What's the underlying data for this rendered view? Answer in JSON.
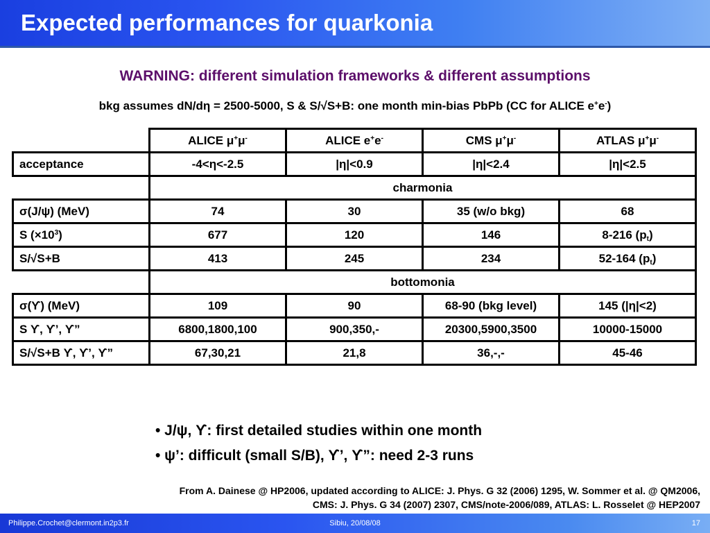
{
  "slide": {
    "title": "Expected performances for quarkonia",
    "warning": "WARNING: different simulation frameworks & different assumptions",
    "bkg_note_parts": [
      "bkg assumes dN/d",
      "η",
      " = 2500-5000, S & S/√S+B: one month min-bias PbPb (CC for ALICE e",
      "+",
      "e",
      "-",
      ")"
    ]
  },
  "table": {
    "columns": [
      {
        "name": "ALICE ",
        "particles": "μ",
        "sup1": "+",
        "p2": "μ",
        "sup2": "-"
      },
      {
        "name": "ALICE e",
        "particles": "",
        "sup1": "+",
        "p2": "e",
        "sup2": "-"
      },
      {
        "name": "CMS ",
        "particles": "μ",
        "sup1": "+",
        "p2": "μ",
        "sup2": "-"
      },
      {
        "name": "ATLAS ",
        "particles": "μ",
        "sup1": "+",
        "p2": "μ",
        "sup2": "-"
      }
    ],
    "acceptance": {
      "label": "acceptance",
      "values": [
        "-4<η<-2.5",
        "|η|<0.9",
        "|η|<2.4",
        "|η|<2.5"
      ]
    },
    "charmonia": {
      "section_label": "charmonia",
      "sigma": {
        "label": "σ(J/ψ) (MeV)",
        "values": [
          "74",
          "30",
          "35 (w/o bkg)",
          "68"
        ]
      },
      "s": {
        "label_pre": "S (×10",
        "label_sup": "3",
        "label_post": ")",
        "values": [
          "677",
          "120",
          "146"
        ],
        "atlas_pre": "8-216 (p",
        "atlas_sub": "t",
        "atlas_post": ")"
      },
      "ssb": {
        "label": "S/√S+B",
        "values": [
          "413",
          "245",
          "234"
        ],
        "atlas_pre": "52-164 (p",
        "atlas_sub": "t",
        "atlas_post": ")"
      }
    },
    "bottomonia": {
      "section_label": "bottomonia",
      "sigma": {
        "label": "σ(ϒ) (MeV)",
        "values": [
          "109",
          "90",
          "68-90 (bkg level)",
          "145 (|η|<2)"
        ]
      },
      "s": {
        "label": "S ϒ, ϒ’, ϒ”",
        "values": [
          "6800,1800,100",
          "900,350,-",
          "20300,5900,3500",
          "10000-15000"
        ]
      },
      "ssb": {
        "label": "S/√S+B ϒ, ϒ’, ϒ”",
        "values": [
          "67,30,21",
          "21,8",
          "36,-,-",
          "45-46"
        ]
      }
    }
  },
  "bullets": [
    "• J/ψ, ϒ: first detailed studies within one month",
    "• ψ’: difficult (small S/B), ϒ’, ϒ”: need 2-3 runs"
  ],
  "source": {
    "line1": "From A. Dainese @ HP2006, updated according to ALICE: J. Phys. G 32 (2006) 1295, W. Sommer et al.  @ QM2006,",
    "line2": "CMS: J. Phys. G 34 (2007) 2307, CMS/note-2006/089, ATLAS: L. Rosselet @ HEP2007"
  },
  "footer": {
    "email": "Philippe.Crochet@clermont.in2p3.fr",
    "event": "Sibiu, 20/08/08",
    "page": "17"
  },
  "colors": {
    "title_blue": "#2a55f0",
    "warning_purple": "#5c0f6a"
  }
}
